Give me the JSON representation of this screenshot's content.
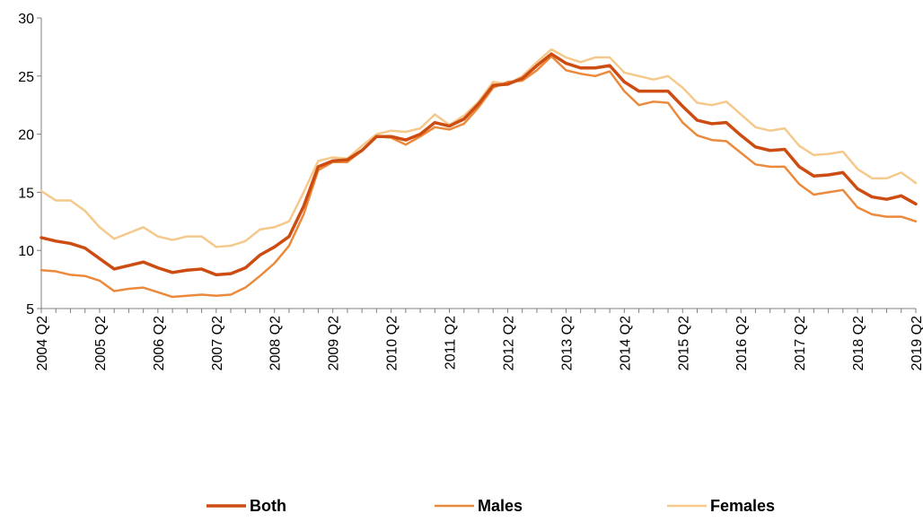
{
  "chart_data": {
    "type": "line",
    "title": "",
    "xlabel": "",
    "ylabel": "",
    "ylim": [
      5,
      30
    ],
    "y_ticks": [
      "5",
      "10",
      "15",
      "20",
      "25",
      "30"
    ],
    "x_tick_labels": [
      "2004 Q2",
      "2005 Q2",
      "2006 Q2",
      "2007 Q2",
      "2008 Q2",
      "2009 Q2",
      "2010 Q2",
      "2011 Q2",
      "2012 Q2",
      "2013 Q2",
      "2014 Q2",
      "2015 Q2",
      "2016 Q2",
      "2017 Q2",
      "2018 Q2",
      "2019 Q2"
    ],
    "grid": false,
    "legend_position": "bottom",
    "x": [
      "2004 Q2",
      "2004 Q3",
      "2004 Q4",
      "2005 Q1",
      "2005 Q2",
      "2005 Q3",
      "2005 Q4",
      "2006 Q1",
      "2006 Q2",
      "2006 Q3",
      "2006 Q4",
      "2007 Q1",
      "2007 Q2",
      "2007 Q3",
      "2007 Q4",
      "2008 Q1",
      "2008 Q2",
      "2008 Q3",
      "2008 Q4",
      "2009 Q1",
      "2009 Q2",
      "2009 Q3",
      "2009 Q4",
      "2010 Q1",
      "2010 Q2",
      "2010 Q3",
      "2010 Q4",
      "2011 Q1",
      "2011 Q2",
      "2011 Q3",
      "2011 Q4",
      "2012 Q1",
      "2012 Q2",
      "2012 Q3",
      "2012 Q4",
      "2013 Q1",
      "2013 Q2",
      "2013 Q3",
      "2013 Q4",
      "2014 Q1",
      "2014 Q2",
      "2014 Q3",
      "2014 Q4",
      "2015 Q1",
      "2015 Q2",
      "2015 Q3",
      "2015 Q4",
      "2016 Q1",
      "2016 Q2",
      "2016 Q3",
      "2016 Q4",
      "2017 Q1",
      "2017 Q2",
      "2017 Q3",
      "2017 Q4",
      "2018 Q1",
      "2018 Q2",
      "2018 Q3",
      "2018 Q4",
      "2019 Q1",
      "2019 Q2"
    ],
    "series": [
      {
        "name": "Both",
        "color": "#cc4c12",
        "values": [
          11.1,
          10.8,
          10.6,
          10.2,
          9.3,
          8.4,
          8.7,
          9.0,
          8.5,
          8.1,
          8.3,
          8.4,
          7.9,
          8.0,
          8.5,
          9.6,
          10.3,
          11.2,
          13.8,
          17.2,
          17.7,
          17.8,
          18.6,
          19.8,
          19.8,
          19.5,
          20.0,
          21.0,
          20.7,
          21.3,
          22.6,
          24.2,
          24.3,
          24.8,
          25.9,
          26.9,
          26.1,
          25.7,
          25.7,
          25.9,
          24.5,
          23.7,
          23.7,
          23.7,
          22.4,
          21.2,
          20.9,
          21.0,
          19.9,
          18.9,
          18.6,
          18.7,
          17.2,
          16.4,
          16.5,
          16.7,
          15.3,
          14.6,
          14.4,
          14.7,
          14.0
        ]
      },
      {
        "name": "Males",
        "color": "#eb8a3c",
        "values": [
          8.3,
          8.2,
          7.9,
          7.8,
          7.4,
          6.5,
          6.7,
          6.8,
          6.4,
          6.0,
          6.1,
          6.2,
          6.1,
          6.2,
          6.8,
          7.8,
          8.9,
          10.4,
          13.1,
          16.9,
          17.6,
          17.6,
          18.6,
          19.8,
          19.7,
          19.1,
          19.8,
          20.6,
          20.4,
          20.9,
          22.3,
          24.0,
          24.5,
          24.6,
          25.5,
          26.7,
          25.5,
          25.2,
          25.0,
          25.4,
          23.7,
          22.5,
          22.8,
          22.7,
          21.0,
          19.9,
          19.5,
          19.4,
          18.4,
          17.4,
          17.2,
          17.2,
          15.7,
          14.8,
          15.0,
          15.2,
          13.7,
          13.1,
          12.9,
          12.9,
          12.5
        ]
      },
      {
        "name": "Females",
        "color": "#f5c98c",
        "values": [
          15.1,
          14.3,
          14.3,
          13.4,
          12.0,
          11.0,
          11.5,
          12.0,
          11.2,
          10.9,
          11.2,
          11.2,
          10.3,
          10.4,
          10.8,
          11.8,
          12.0,
          12.5,
          15.0,
          17.7,
          18.0,
          17.9,
          19.0,
          20.0,
          20.3,
          20.2,
          20.5,
          21.7,
          20.8,
          21.6,
          22.8,
          24.5,
          24.3,
          25.0,
          26.2,
          27.3,
          26.6,
          26.2,
          26.6,
          26.6,
          25.3,
          25.0,
          24.7,
          25.0,
          24.0,
          22.7,
          22.5,
          22.8,
          21.7,
          20.6,
          20.3,
          20.5,
          19.0,
          18.2,
          18.3,
          18.5,
          17.0,
          16.2,
          16.2,
          16.7,
          15.8
        ]
      }
    ]
  }
}
